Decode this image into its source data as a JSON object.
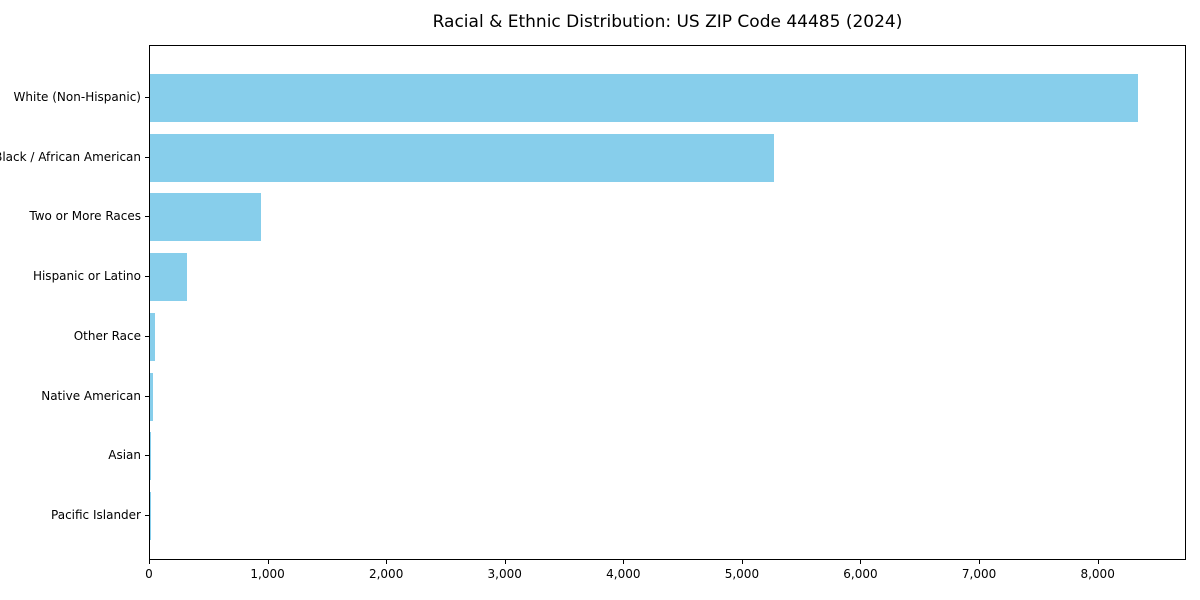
{
  "title": "Racial & Ethnic Distribution: US ZIP Code 44485 (2024)",
  "colors": {
    "bar": "#87CEEB",
    "axis": "#000000",
    "text": "#000000",
    "background": "#ffffff"
  },
  "chart_data": {
    "type": "bar",
    "orientation": "horizontal",
    "title": "Racial & Ethnic Distribution: US ZIP Code 44485 (2024)",
    "categories": [
      "White (Non-Hispanic)",
      "Black / African American",
      "Two or More Races",
      "Hispanic or Latino",
      "Other Race",
      "Native American",
      "Asian",
      "Pacific Islander"
    ],
    "values": [
      8330,
      5260,
      935,
      315,
      45,
      25,
      10,
      3
    ],
    "xlabel": "",
    "ylabel": "",
    "xlim": [
      0,
      8745
    ],
    "x_ticks": [
      0,
      1000,
      2000,
      3000,
      4000,
      5000,
      6000,
      7000,
      8000
    ],
    "x_tick_labels": [
      "0",
      "1,000",
      "2,000",
      "3,000",
      "4,000",
      "5,000",
      "6,000",
      "7,000",
      "8,000"
    ],
    "bar_color": "#87CEEB",
    "grid": false,
    "legend_position": "none"
  }
}
